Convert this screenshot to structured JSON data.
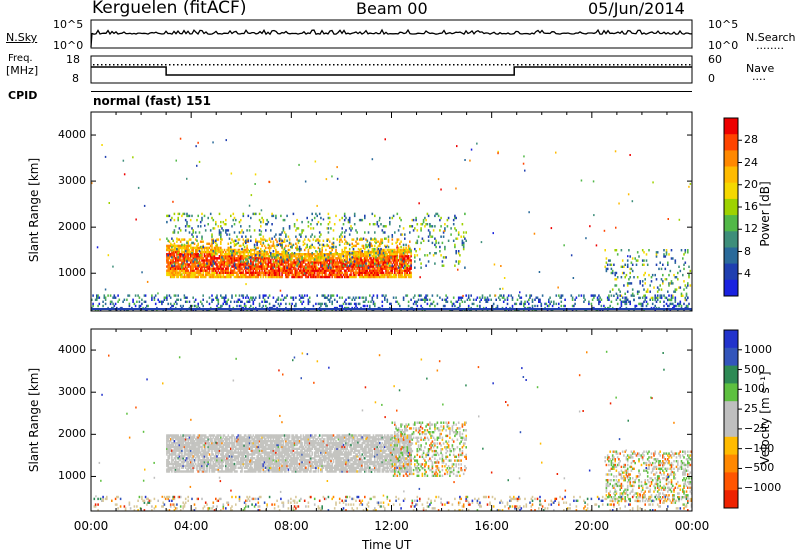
{
  "header": {
    "station": "Kerguelen (fitACF)",
    "beam": "Beam 00",
    "date": "05/Jun/2014"
  },
  "nsky_panel": {
    "left_label": "N.Sky",
    "right_label": "N.Search",
    "right_marker": "........",
    "ticks": [
      "10^5",
      "10^0"
    ]
  },
  "freq_panel": {
    "left_label_1": "Freq.",
    "left_label_2": "[MHz]",
    "left_ticks": [
      "18",
      "8"
    ],
    "right_label": "Nave",
    "right_marker": "....",
    "right_ticks": [
      "60",
      "0"
    ]
  },
  "cpid_panel": {
    "label": "CPID",
    "mode": "normal (fast) 151"
  },
  "chart_data": [
    {
      "type": "heatmap",
      "name": "power",
      "title": "",
      "xlabel": "",
      "ylabel": "Slant Range [km]",
      "xlim": [
        0,
        24
      ],
      "ylim": [
        180,
        4500
      ],
      "x_tick_labels": [
        "00:00",
        "04:00",
        "08:00",
        "12:00",
        "16:00",
        "20:00",
        "00:00"
      ],
      "y_tick_labels": [
        "1000",
        "2000",
        "3000",
        "4000"
      ],
      "y_ticks": [
        1000,
        2000,
        3000,
        4000
      ],
      "colorbar_label": "Power [dB]",
      "colorbar_ticks": [
        "28",
        "24",
        "20",
        "16",
        "12",
        "8",
        "4"
      ],
      "colorbar_colors": [
        "#ee0000",
        "#ff4400",
        "#ff8800",
        "#ffbb00",
        "#f5d800",
        "#9ed200",
        "#52b848",
        "#3e8e7a",
        "#2a6a9a",
        "#1f3fb0",
        "#1a22e0"
      ],
      "regions": [
        {
          "t": [
            3.0,
            12.8
          ],
          "r": [
            900,
            1750
          ],
          "level": "high"
        },
        {
          "t": [
            3.0,
            15.0
          ],
          "r": [
            1100,
            2300
          ],
          "level": "mid"
        },
        {
          "t": [
            20.5,
            24.0
          ],
          "r": [
            400,
            1500
          ],
          "level": "mid"
        },
        {
          "t": [
            0.0,
            24.0
          ],
          "r": [
            180,
            500
          ],
          "level": "low"
        }
      ]
    },
    {
      "type": "heatmap",
      "name": "velocity",
      "title": "",
      "xlabel": "Time UT",
      "ylabel": "Slant Range [km]",
      "xlim": [
        0,
        24
      ],
      "ylim": [
        180,
        4500
      ],
      "x_tick_labels": [
        "00:00",
        "04:00",
        "08:00",
        "12:00",
        "16:00",
        "20:00",
        "00:00"
      ],
      "y_tick_labels": [
        "1000",
        "2000",
        "3000",
        "4000"
      ],
      "y_ticks": [
        1000,
        2000,
        3000,
        4000
      ],
      "colorbar_label": "Velocity [m s⁻¹]",
      "colorbar_ticks": [
        "1000",
        "500",
        "100",
        "25",
        "−25",
        "−100",
        "−500",
        "−1000"
      ],
      "colorbar_colors": [
        "#2233cc",
        "#3355bb",
        "#2e8a55",
        "#5ec040",
        "#bfbfbf",
        "#bfbfbf",
        "#ffbb00",
        "#ff8800",
        "#ff5500",
        "#ee2200"
      ],
      "regions": [
        {
          "t": [
            3.0,
            12.8
          ],
          "r": [
            1100,
            2000
          ],
          "level": "ground"
        },
        {
          "t": [
            12.0,
            15.0
          ],
          "r": [
            1000,
            2300
          ],
          "level": "mixed"
        },
        {
          "t": [
            20.5,
            24.0
          ],
          "r": [
            400,
            1600
          ],
          "level": "mixed"
        },
        {
          "t": [
            0.0,
            24.0
          ],
          "r": [
            180,
            500
          ],
          "level": "low"
        }
      ]
    }
  ],
  "time_axis_label": "Time UT"
}
